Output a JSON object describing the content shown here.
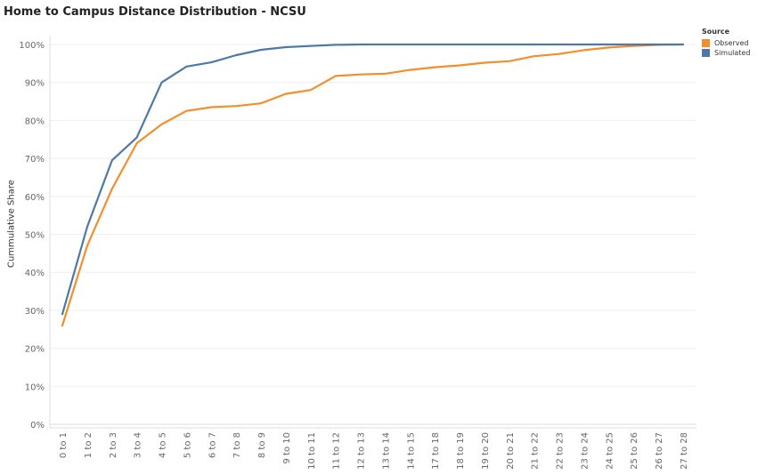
{
  "chart_data": {
    "type": "line",
    "title": "Home to Campus Distance Distribution - NCSU",
    "xlabel": "",
    "ylabel": "Cummulative Share",
    "ylim": [
      0,
      100
    ],
    "y_ticks": [
      "0%",
      "10%",
      "20%",
      "30%",
      "40%",
      "50%",
      "60%",
      "70%",
      "80%",
      "90%",
      "100%"
    ],
    "categories": [
      "0 to 1",
      "1 to 2",
      "2 to 3",
      "3 to 4",
      "4 to 5",
      "5 to 6",
      "6 to 7",
      "7 to 8",
      "8 to 9",
      "9 to 10",
      "10 to 11",
      "11 to 12",
      "12 to 13",
      "13 to 14",
      "14 to 15",
      "17 to 18",
      "18 to 19",
      "19 to 20",
      "20 to 21",
      "21 to 22",
      "22 to 23",
      "23 to 24",
      "24 to 25",
      "25 to 26",
      "26 to 27",
      "27 to 28"
    ],
    "legend": {
      "title": "Source",
      "position": "top-right"
    },
    "grid": true,
    "series": [
      {
        "name": "Observed",
        "color": "#F28E2B",
        "values": [
          26,
          47,
          62,
          74,
          79,
          82.5,
          83.5,
          83.8,
          84.5,
          87,
          88,
          91.7,
          92.1,
          92.3,
          93.3,
          94,
          94.5,
          95.2,
          95.6,
          96.9,
          97.5,
          98.5,
          99.2,
          99.6,
          99.9,
          100
        ]
      },
      {
        "name": "Simulated",
        "color": "#4E79A7",
        "values": [
          29,
          52,
          69.5,
          75.5,
          90,
          94.2,
          95.3,
          97.2,
          98.6,
          99.3,
          99.6,
          99.9,
          100,
          100,
          100,
          100,
          100,
          100,
          100,
          100,
          100,
          100,
          100,
          100,
          100,
          100
        ]
      }
    ]
  }
}
